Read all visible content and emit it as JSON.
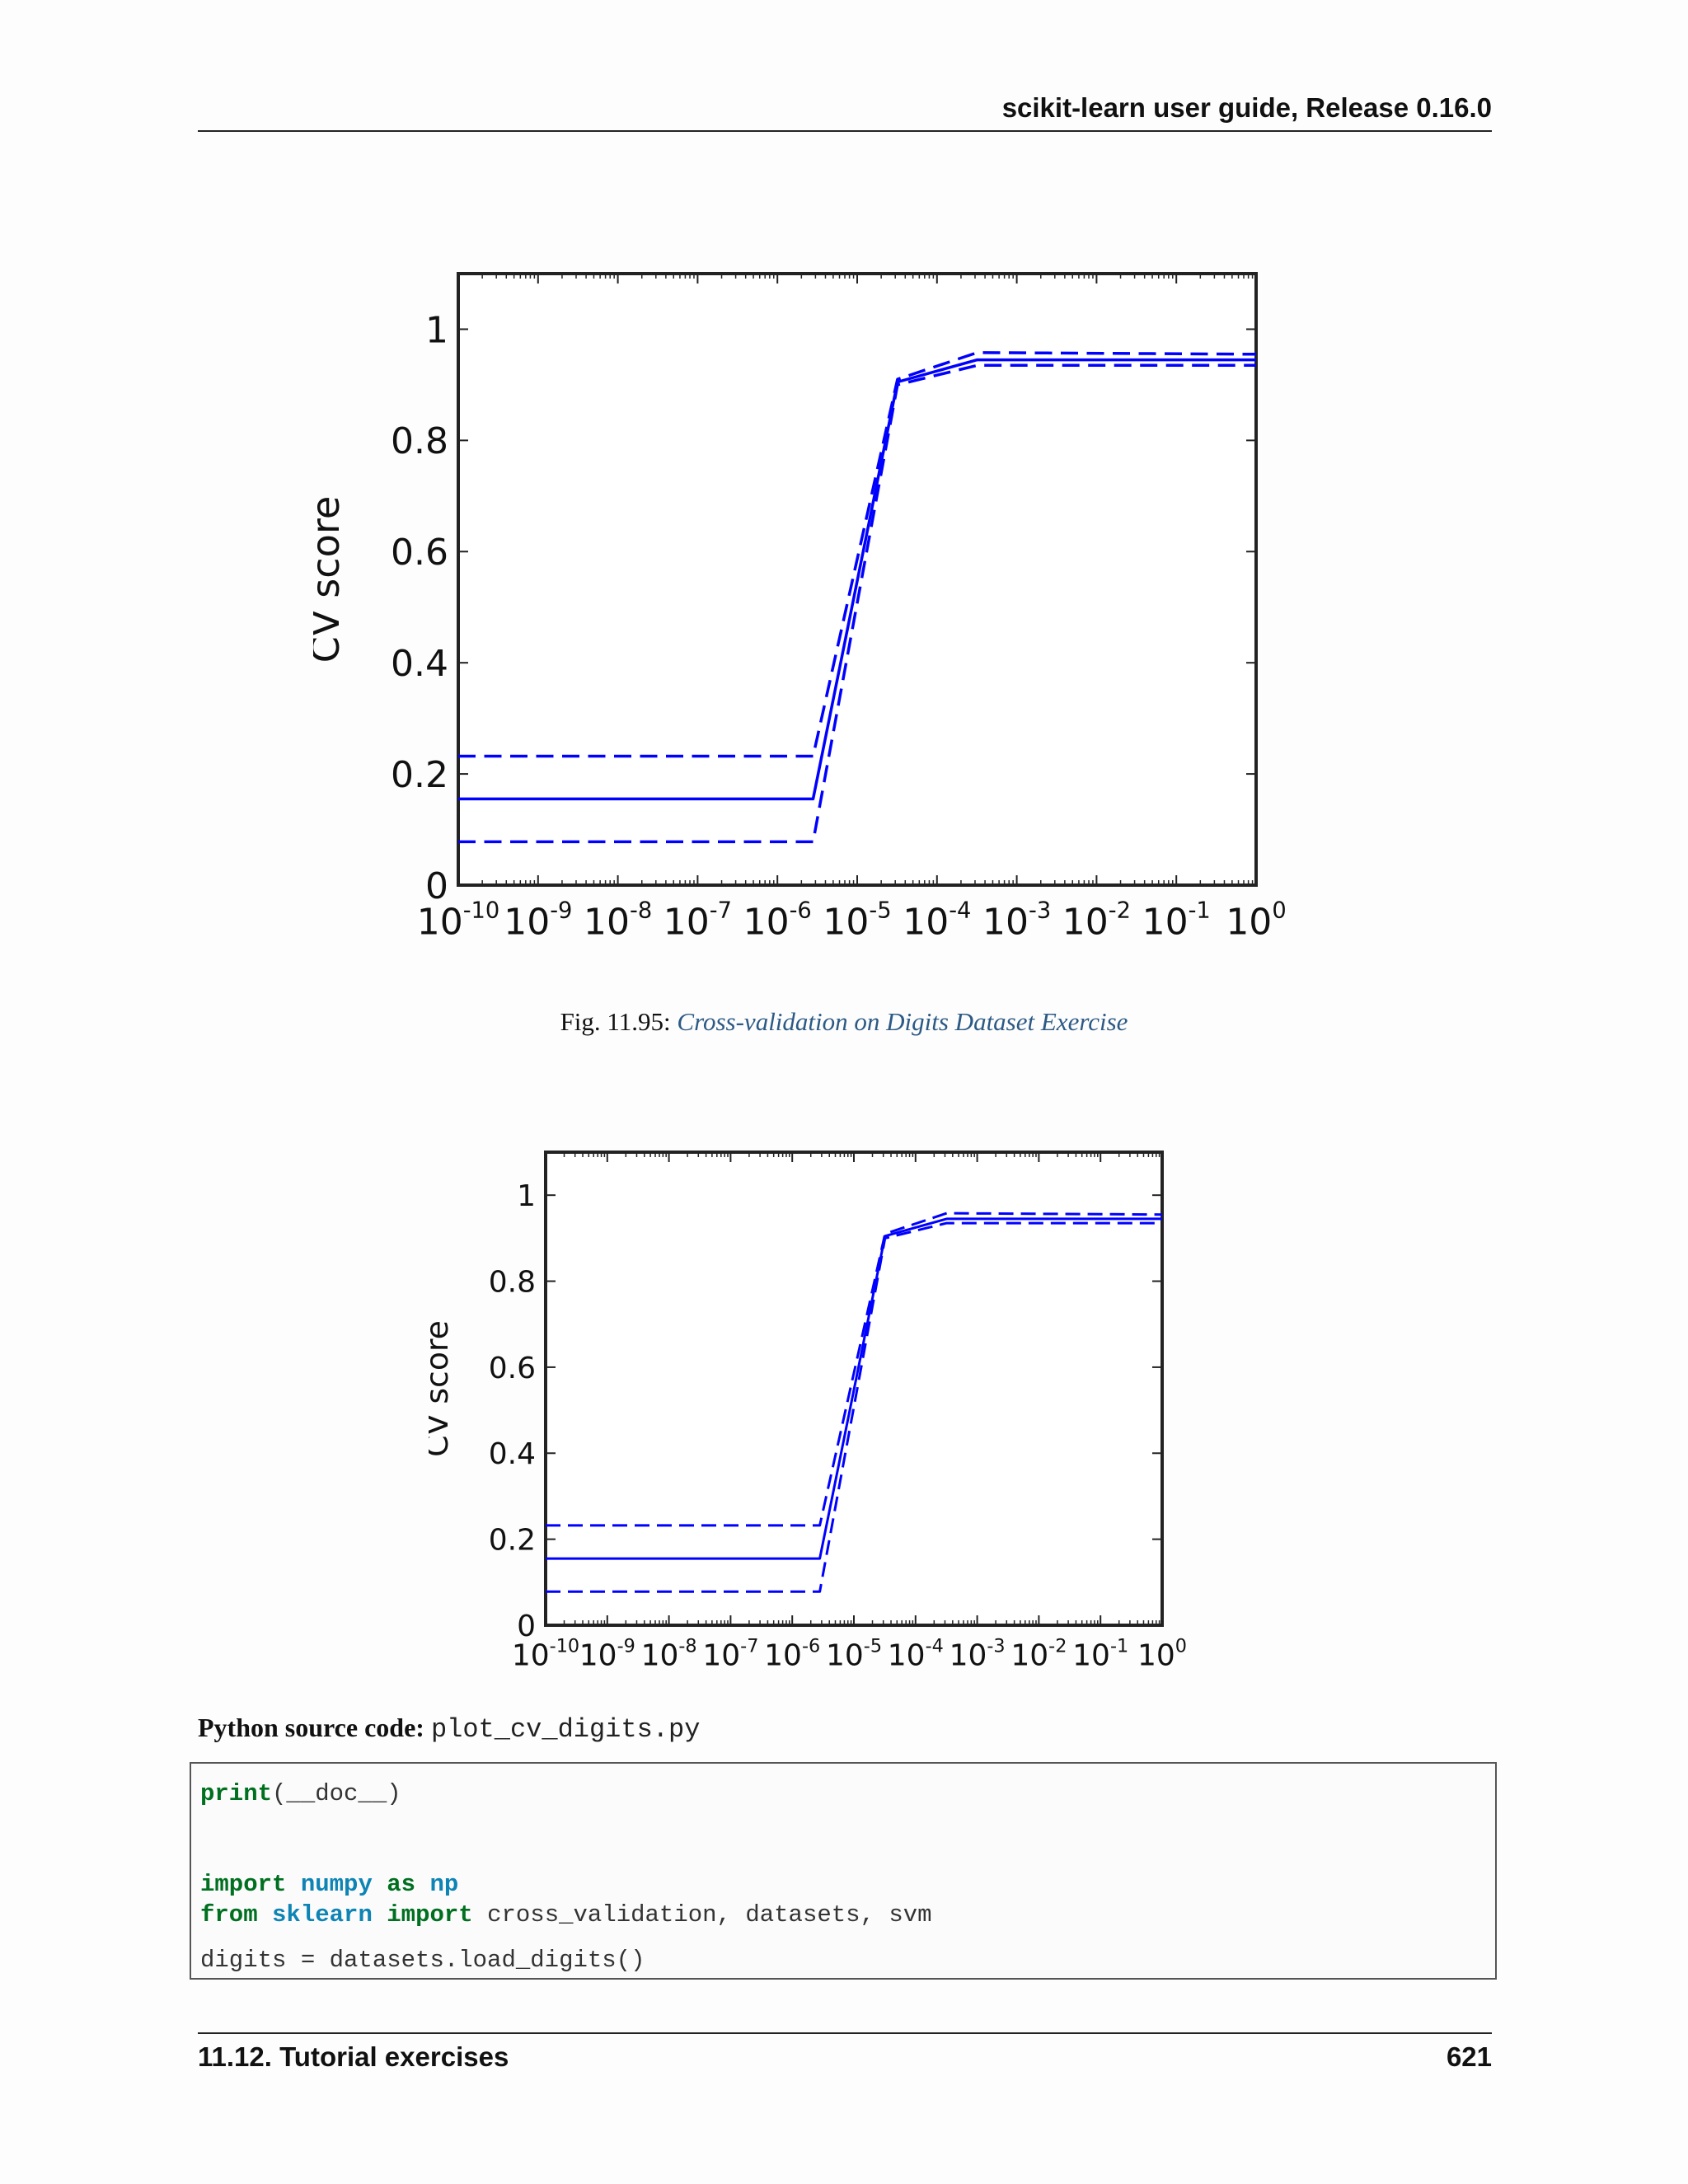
{
  "header": {
    "title": "scikit-learn user guide, Release 0.16.0"
  },
  "figure1": {
    "caption_prefix": "Fig.  11.95: ",
    "caption_link": "Cross-validation on Digits Dataset Exercise"
  },
  "source": {
    "label": "Python source code:",
    "filename": "plot_cv_digits.py"
  },
  "code": {
    "line1": {
      "fn": "print",
      "rest": "(__doc__)"
    },
    "line2": {
      "kw1": "import",
      "mod": "numpy",
      "kw2": "as",
      "alias": "np"
    },
    "line3": {
      "kw1": "from",
      "mod": "sklearn",
      "kw2": "import",
      "rest": " cross_validation, datasets, svm"
    },
    "line4": "digits = datasets.load_digits()"
  },
  "footer": {
    "section": "11.12.  Tutorial exercises",
    "page": "621"
  },
  "chart_data": [
    {
      "type": "line",
      "title": "",
      "xlabel": "",
      "ylabel": "CV score",
      "x_scale": "log",
      "xlim": [
        1e-10,
        1
      ],
      "ylim": [
        0,
        1.1
      ],
      "x_tick_exponents": [
        -10,
        -9,
        -8,
        -7,
        -6,
        -5,
        -4,
        -3,
        -2,
        -1,
        0
      ],
      "y_ticks": [
        "0",
        "0.2",
        "0.4",
        "0.6",
        "0.8",
        "1"
      ],
      "y_tick_values": [
        0,
        0.2,
        0.4,
        0.6,
        0.8,
        1
      ],
      "color": "#0000ff",
      "x": [
        1e-10,
        2.8e-06,
        3.2e-05,
        0.00032,
        1
      ],
      "series": [
        {
          "style": "solid",
          "values": [
            0.155,
            0.155,
            0.905,
            0.945,
            0.945
          ]
        },
        {
          "style": "dashed",
          "values": [
            0.232,
            0.232,
            0.91,
            0.958,
            0.955
          ]
        },
        {
          "style": "dashed",
          "values": [
            0.078,
            0.078,
            0.9,
            0.935,
            0.935
          ]
        }
      ]
    },
    {
      "type": "line",
      "title": "",
      "xlabel": "",
      "ylabel": "CV score",
      "x_scale": "log",
      "xlim": [
        1e-10,
        1
      ],
      "ylim": [
        0,
        1.1
      ],
      "x_tick_exponents": [
        -10,
        -9,
        -8,
        -7,
        -6,
        -5,
        -4,
        -3,
        -2,
        -1,
        0
      ],
      "y_ticks": [
        "0",
        "0.2",
        "0.4",
        "0.6",
        "0.8",
        "1"
      ],
      "y_tick_values": [
        0,
        0.2,
        0.4,
        0.6,
        0.8,
        1
      ],
      "color": "#0000ff",
      "x": [
        1e-10,
        2.8e-06,
        3.2e-05,
        0.00032,
        1
      ],
      "series": [
        {
          "style": "solid",
          "values": [
            0.155,
            0.155,
            0.905,
            0.945,
            0.945
          ]
        },
        {
          "style": "dashed",
          "values": [
            0.232,
            0.232,
            0.91,
            0.958,
            0.955
          ]
        },
        {
          "style": "dashed",
          "values": [
            0.078,
            0.078,
            0.9,
            0.935,
            0.935
          ]
        }
      ]
    }
  ]
}
